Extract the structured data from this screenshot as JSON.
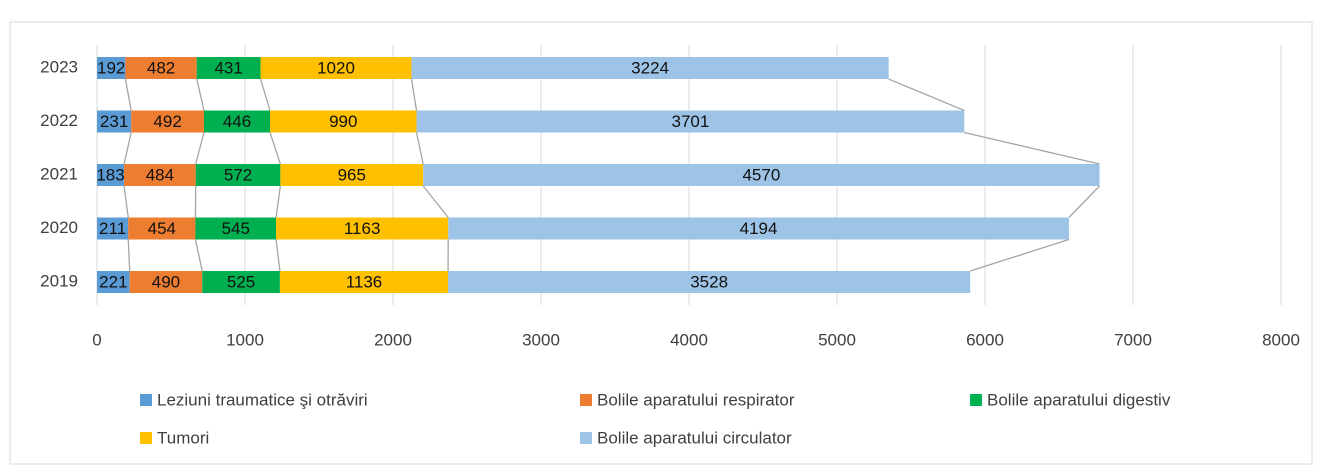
{
  "chart_data": {
    "type": "stacked-bar-horizontal",
    "categories": [
      "2019",
      "2020",
      "2021",
      "2022",
      "2023"
    ],
    "series": [
      {
        "name": "Leziuni traumatice şi otrăviri",
        "color": "#5b9bd5",
        "values": [
          221,
          211,
          183,
          231,
          192
        ]
      },
      {
        "name": "Bolile aparatului respirator",
        "color": "#ed7d31",
        "values": [
          490,
          454,
          484,
          492,
          482
        ]
      },
      {
        "name": "Bolile aparatului digestiv",
        "color": "#00b050",
        "values": [
          525,
          545,
          572,
          446,
          431
        ]
      },
      {
        "name": "Tumori",
        "color": "#ffc000",
        "values": [
          1136,
          1163,
          965,
          990,
          1020
        ]
      },
      {
        "name": "Bolile aparatului circulator",
        "color": "#9dc3e6",
        "values": [
          3528,
          4194,
          4570,
          3701,
          3224
        ]
      }
    ],
    "xlim": [
      0,
      8000
    ],
    "xticks": [
      0,
      1000,
      2000,
      3000,
      4000,
      5000,
      6000,
      7000,
      8000
    ],
    "grid": true,
    "legend": "bottom",
    "series_lines": true
  }
}
